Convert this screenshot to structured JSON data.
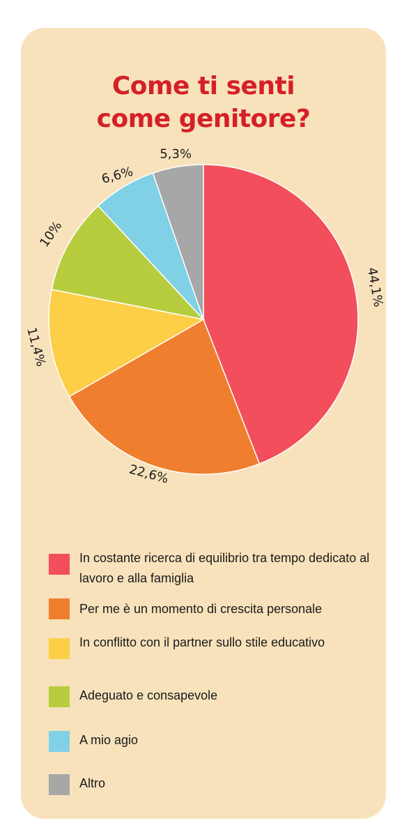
{
  "title_line1": "Come ti senti",
  "title_line2": "come genitore?",
  "colors": {
    "title": "#d52027",
    "card": "#f8e2bc"
  },
  "chart_data": {
    "type": "pie",
    "title": "Come ti senti come genitore?",
    "slices": [
      {
        "label": "In costante ricerca di equilibrio tra tempo dedicato al lavoro e alla famiglia",
        "value": 44.1,
        "value_label": "44,1%",
        "color": "#f24e5b"
      },
      {
        "label": "Per me è un momento di crescita personale",
        "value": 22.6,
        "value_label": "22,6%",
        "color": "#ef7f2e"
      },
      {
        "label": "In conflitto con il partner sullo stile educativo",
        "value": 11.4,
        "value_label": "11,4%",
        "color": "#fdcf46"
      },
      {
        "label": "Adeguato e consapevole",
        "value": 10,
        "value_label": "10%",
        "color": "#b7cd3e"
      },
      {
        "label": "A mio agio",
        "value": 6.6,
        "value_label": "6,6%",
        "color": "#80d0e6"
      },
      {
        "label": "Altro",
        "value": 5.3,
        "value_label": "5,3%",
        "color": "#a7a7a7"
      }
    ],
    "legend_position": "bottom"
  }
}
